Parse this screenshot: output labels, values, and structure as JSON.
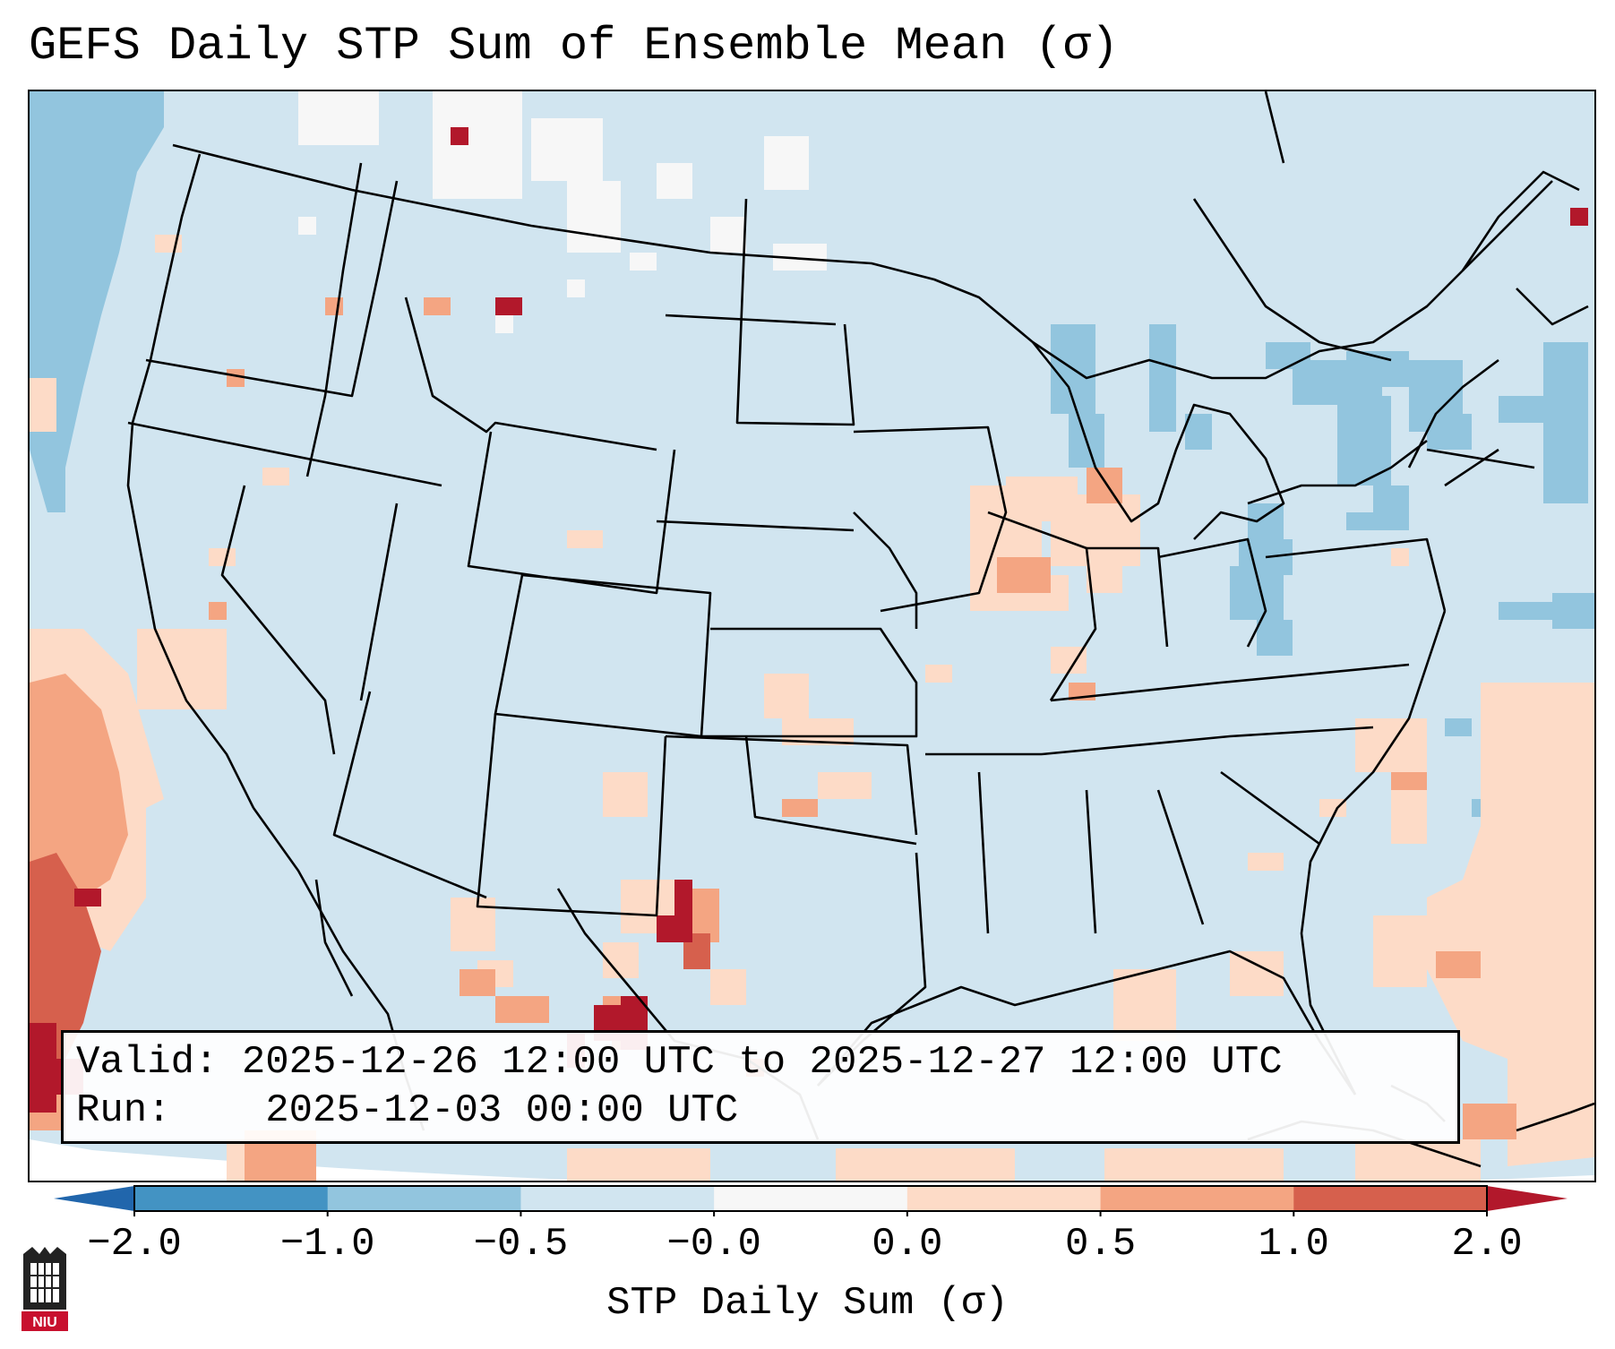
{
  "title": "GEFS Daily STP Sum of Ensemble Mean (σ)",
  "info": {
    "valid_label": "Valid:",
    "valid_value": "2025-12-26 12:00 UTC to 2025-12-27 12:00 UTC",
    "run_label": "Run:",
    "run_value": "2025-12-03 00:00 UTC"
  },
  "colorbar": {
    "label": "STP Daily Sum (σ)",
    "ticks": [
      "−2.0",
      "−1.0",
      "−0.5",
      "−0.0",
      "0.0",
      "0.5",
      "1.0",
      "2.0"
    ],
    "colors": [
      "#4393c3",
      "#92c5de",
      "#d1e5f0",
      "#f7f7f7",
      "#fddbc7",
      "#f4a582",
      "#d6604d"
    ],
    "under_color": "#2166ac",
    "over_color": "#b2182b"
  },
  "map": {
    "background_color": "#d1e5f0",
    "outline_color": "#000000"
  },
  "logo": {
    "icon": "niu-logo-icon",
    "text": "NIU"
  }
}
